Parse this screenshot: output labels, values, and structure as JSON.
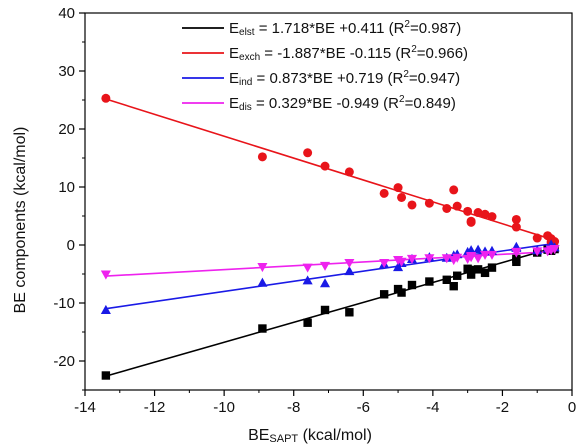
{
  "chart_data": {
    "type": "scatter",
    "title": "",
    "xlabel_main": "BE",
    "xlabel_sub": "SAPT",
    "xlabel_unit": " (kcal/mol)",
    "ylabel": "BE components (kcal/mol)",
    "xlim": [
      -14,
      0
    ],
    "ylim": [
      -25,
      40
    ],
    "xticks": [
      -14,
      -12,
      -10,
      -8,
      -6,
      -4,
      -2,
      0
    ],
    "yticks": [
      -20,
      -10,
      0,
      10,
      20,
      30,
      40
    ],
    "xtick_labels": [
      "-14",
      "-12",
      "-10",
      "-8",
      "-6",
      "-4",
      "-2",
      "0"
    ],
    "ytick_labels": [
      "-20",
      "-10",
      "0",
      "10",
      "20",
      "30",
      "40"
    ],
    "grid": false,
    "legend_position": "top-right",
    "x": [
      -13.4,
      -8.9,
      -7.6,
      -7.1,
      -6.4,
      -5.4,
      -5.0,
      -4.9,
      -4.6,
      -4.1,
      -3.6,
      -3.4,
      -3.3,
      -3.0,
      -2.9,
      -2.9,
      -2.7,
      -2.5,
      -2.3,
      -1.6,
      -1.6,
      -1.0,
      -0.7,
      -0.6,
      -0.6,
      -0.5
    ],
    "series": [
      {
        "name": "elst",
        "legend_prefix": "E",
        "legend_sub": "elst",
        "legend_eq": " = 1.718*BE +0.411 (R",
        "legend_sup": "2",
        "legend_end": "=0.987)",
        "color": "#000000",
        "marker": "square",
        "slope": 1.718,
        "intercept": 0.411,
        "values": [
          -22.5,
          -14.4,
          -13.4,
          -11.2,
          -11.6,
          -8.5,
          -7.6,
          -8.2,
          -6.9,
          -6.3,
          -6.0,
          -7.1,
          -5.3,
          -4.1,
          -5.1,
          -4.3,
          -4.2,
          -4.8,
          -3.9,
          -2.4,
          -2.9,
          -1.3,
          -0.8,
          -0.8,
          -1.0,
          -0.7
        ]
      },
      {
        "name": "exch",
        "legend_prefix": "E",
        "legend_sub": "exch",
        "legend_eq": " = -1.887*BE -0.115 (R",
        "legend_sup": "2",
        "legend_end": "=0.966)",
        "color": "#e8141a",
        "marker": "circle",
        "slope": -1.887,
        "intercept": -0.115,
        "values": [
          25.3,
          15.2,
          15.9,
          13.6,
          12.6,
          8.9,
          9.9,
          8.2,
          6.9,
          7.2,
          6.3,
          9.5,
          6.7,
          5.8,
          3.9,
          4.1,
          5.6,
          5.3,
          4.9,
          4.4,
          3.1,
          1.2,
          1.6,
          0.5,
          1.1,
          0.6
        ]
      },
      {
        "name": "ind",
        "legend_prefix": "E",
        "legend_sub": "ind",
        "legend_eq": " = 0.873*BE +0.719 (R",
        "legend_sup": "2",
        "legend_end": "=0.947)",
        "color": "#1a1ae6",
        "marker": "triangle-up",
        "slope": 0.873,
        "intercept": 0.719,
        "values": [
          -11.2,
          -6.5,
          -6.1,
          -6.6,
          -4.5,
          -3.3,
          -3.8,
          -3.1,
          -2.4,
          -2.1,
          -2.2,
          -1.8,
          -1.6,
          -1.2,
          -0.9,
          -1.3,
          -0.8,
          -1.1,
          -1.0,
          -0.3,
          -0.5,
          -0.9,
          -0.6,
          -0.2,
          0.1,
          -0.4
        ]
      },
      {
        "name": "dis",
        "legend_prefix": "E",
        "legend_sub": "dis",
        "legend_eq": " = 0.329*BE -0.949 (R",
        "legend_sup": "2",
        "legend_end": "=0.849)",
        "color": "#ee22ee",
        "marker": "triangle-down",
        "slope": 0.329,
        "intercept": -0.949,
        "values": [
          -5.1,
          -3.8,
          -3.9,
          -3.6,
          -3.1,
          -3.1,
          -2.6,
          -2.9,
          -2.4,
          -2.3,
          -2.3,
          -2.6,
          -2.2,
          -2.4,
          -1.9,
          -2.1,
          -2.3,
          -1.7,
          -1.7,
          -1.3,
          -1.2,
          -1.1,
          -1.1,
          -0.9,
          -0.8,
          -0.7
        ]
      }
    ]
  }
}
